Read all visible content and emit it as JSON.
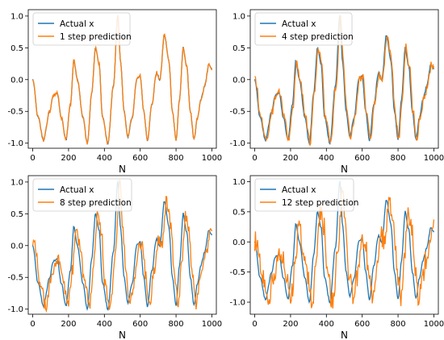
{
  "chart_data": [
    {
      "type": "line",
      "xlabel": "N",
      "xlim": [
        -25,
        1025
      ],
      "ylim": [
        -1.08,
        1.1
      ],
      "xticks": [
        0,
        200,
        400,
        600,
        800,
        1000
      ],
      "yticks": [
        -1.0,
        -0.5,
        0.0,
        0.5,
        1.0
      ],
      "legend_position": "top-left",
      "noise": 0.015,
      "lag": 0,
      "series": [
        {
          "name": "Actual x",
          "color": "#1f77b4"
        },
        {
          "name": "1 step prediction",
          "color": "#ff7f0e"
        }
      ]
    },
    {
      "type": "line",
      "xlabel": "N",
      "xlim": [
        -25,
        1025
      ],
      "ylim": [
        -1.08,
        1.1
      ],
      "xticks": [
        0,
        200,
        400,
        600,
        800,
        1000
      ],
      "yticks": [
        -1.0,
        -0.5,
        0.0,
        0.5,
        1.0
      ],
      "legend_position": "top-left",
      "noise": 0.035,
      "lag": 1,
      "series": [
        {
          "name": "Actual x",
          "color": "#1f77b4"
        },
        {
          "name": "4 step prediction",
          "color": "#ff7f0e"
        }
      ]
    },
    {
      "type": "line",
      "xlabel": "N",
      "xlim": [
        -25,
        1025
      ],
      "ylim": [
        -1.08,
        1.1
      ],
      "xticks": [
        0,
        200,
        400,
        600,
        800,
        1000
      ],
      "yticks": [
        -1.0,
        -0.5,
        0.0,
        0.5,
        1.0
      ],
      "legend_position": "top-left",
      "noise": 0.06,
      "lag": 3,
      "series": [
        {
          "name": "Actual x",
          "color": "#1f77b4"
        },
        {
          "name": "8 step prediction",
          "color": "#ff7f0e"
        }
      ]
    },
    {
      "type": "line",
      "xlabel": "N",
      "xlim": [
        -25,
        1025
      ],
      "ylim": [
        -1.2,
        1.1
      ],
      "xticks": [
        0,
        200,
        400,
        600,
        800,
        1000
      ],
      "yticks": [
        -1.0,
        -0.5,
        0.0,
        0.5,
        1.0
      ],
      "legend_position": "top-left",
      "noise": 0.11,
      "lag": 4,
      "series": [
        {
          "name": "Actual x",
          "color": "#1f77b4"
        },
        {
          "name": "12 step prediction",
          "color": "#ff7f0e"
        }
      ]
    }
  ],
  "actual_x_keypoints": [
    [
      0,
      0.0
    ],
    [
      30,
      -0.6
    ],
    [
      60,
      -0.95
    ],
    [
      95,
      -0.5
    ],
    [
      115,
      -0.25
    ],
    [
      135,
      -0.2
    ],
    [
      160,
      -0.6
    ],
    [
      185,
      -0.95
    ],
    [
      210,
      -0.4
    ],
    [
      230,
      0.3
    ],
    [
      250,
      0.0
    ],
    [
      280,
      -0.6
    ],
    [
      305,
      -1.0
    ],
    [
      330,
      -0.2
    ],
    [
      350,
      0.5
    ],
    [
      370,
      0.25
    ],
    [
      390,
      -0.6
    ],
    [
      420,
      -1.0
    ],
    [
      450,
      -0.1
    ],
    [
      475,
      1.0
    ],
    [
      490,
      0.3
    ],
    [
      510,
      -0.5
    ],
    [
      530,
      -0.9
    ],
    [
      555,
      -0.6
    ],
    [
      580,
      0.0
    ],
    [
      600,
      0.05
    ],
    [
      620,
      -0.5
    ],
    [
      640,
      -0.95
    ],
    [
      665,
      -0.4
    ],
    [
      690,
      0.1
    ],
    [
      710,
      0.0
    ],
    [
      735,
      0.7
    ],
    [
      760,
      0.3
    ],
    [
      780,
      -0.5
    ],
    [
      800,
      -0.95
    ],
    [
      820,
      -0.3
    ],
    [
      840,
      0.5
    ],
    [
      860,
      0.2
    ],
    [
      880,
      -0.5
    ],
    [
      900,
      -0.95
    ],
    [
      920,
      -0.6
    ],
    [
      940,
      -0.3
    ],
    [
      960,
      -0.1
    ],
    [
      985,
      0.25
    ],
    [
      1000,
      0.15
    ]
  ]
}
